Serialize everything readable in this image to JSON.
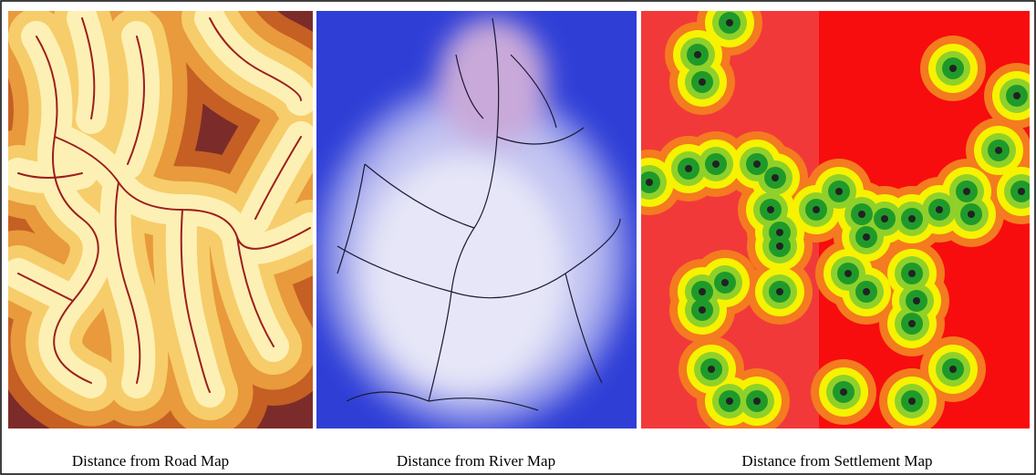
{
  "captions": [
    "Distance from Road Map",
    "Distance from River Map",
    "Distance from Settlement Map"
  ]
}
